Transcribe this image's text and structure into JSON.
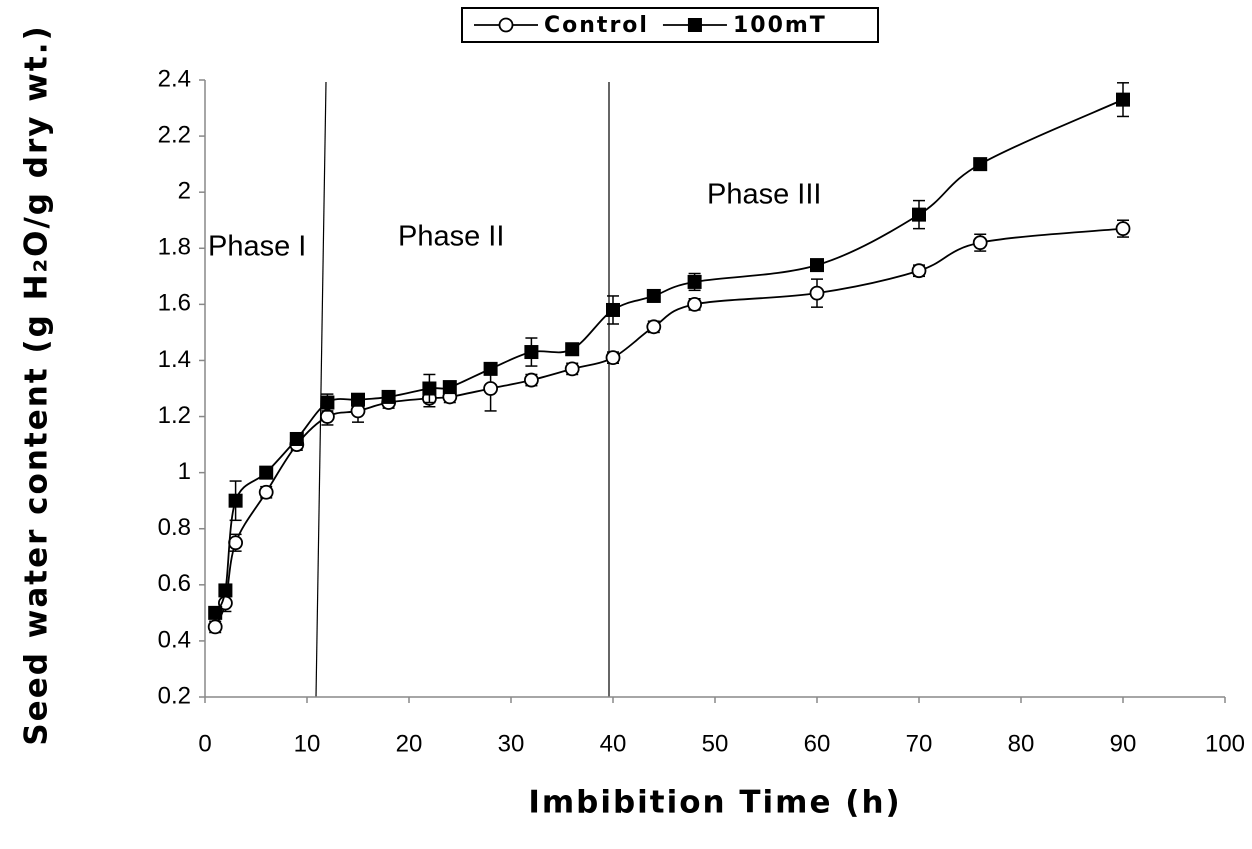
{
  "chart_data": {
    "type": "line",
    "x_label": "Imbibition Time (h)",
    "y_label": "Seed water content (g H₂O/g dry wt.)",
    "annotations": [
      "Phase I",
      "Phase II",
      "Phase III"
    ],
    "x": [
      1,
      2,
      3,
      6,
      9,
      12,
      15,
      18,
      22,
      24,
      28,
      32,
      36,
      40,
      44,
      48,
      60,
      70,
      76,
      90
    ],
    "series": [
      {
        "name": "Control",
        "color": "#000000",
        "marker": "open-circle",
        "values": [
          0.45,
          0.535,
          0.75,
          0.93,
          1.1,
          1.2,
          1.22,
          1.25,
          1.265,
          1.27,
          1.3,
          1.33,
          1.37,
          1.41,
          1.52,
          1.6,
          1.64,
          1.72,
          1.82,
          1.87
        ],
        "errors": [
          0.02,
          0.03,
          0.03,
          0.02,
          0.02,
          0.03,
          0.04,
          0.02,
          0.03,
          0.02,
          0.08,
          0.02,
          0.02,
          0.02,
          0.02,
          0.02,
          0.05,
          0.02,
          0.03,
          0.03
        ]
      },
      {
        "name": "100mT",
        "color": "#000000",
        "marker": "filled-square",
        "values": [
          0.5,
          0.58,
          0.9,
          1.0,
          1.12,
          1.25,
          1.26,
          1.27,
          1.3,
          1.305,
          1.37,
          1.43,
          1.44,
          1.58,
          1.63,
          1.68,
          1.74,
          1.92,
          2.1,
          2.33
        ],
        "errors": [
          0.02,
          0.02,
          0.07,
          0.02,
          0.02,
          0.03,
          0.02,
          0.02,
          0.05,
          0.02,
          0.02,
          0.05,
          0.02,
          0.05,
          0.02,
          0.03,
          0.02,
          0.05,
          0.02,
          0.06
        ]
      }
    ],
    "xlim": [
      0,
      100
    ],
    "xticks": [
      0,
      10,
      20,
      30,
      40,
      50,
      60,
      70,
      80,
      90,
      100
    ],
    "ylim": [
      0.2,
      2.4
    ],
    "yticks": [
      0.2,
      0.4,
      0.6,
      0.8,
      1,
      1.2,
      1.4,
      1.6,
      1.8,
      2,
      2.2,
      2.4
    ],
    "legend": "top"
  }
}
